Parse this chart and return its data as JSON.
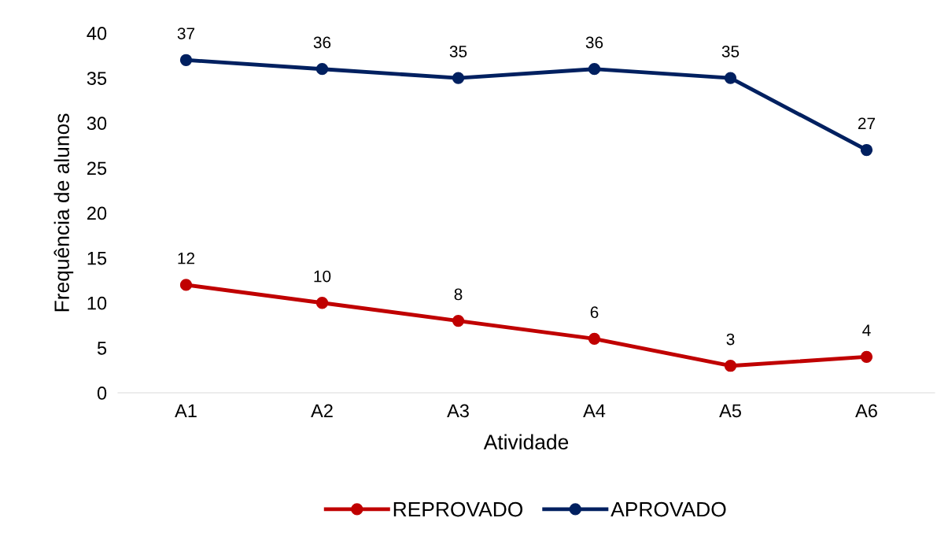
{
  "chart_data": {
    "type": "line",
    "xlabel": "Atividade",
    "ylabel": "Frequência de alunos",
    "categories": [
      "A1",
      "A2",
      "A3",
      "A4",
      "A5",
      "A6"
    ],
    "series": [
      {
        "name": "REPROVADO",
        "color": "#c00000",
        "values": [
          12,
          10,
          8,
          6,
          3,
          4
        ]
      },
      {
        "name": "APROVADO",
        "color": "#002060",
        "values": [
          37,
          36,
          35,
          36,
          35,
          27
        ]
      }
    ],
    "ylim": [
      0,
      40
    ],
    "yticks": [
      0,
      5,
      10,
      15,
      20,
      25,
      30,
      35,
      40
    ],
    "grid": false,
    "legend": "bottom",
    "marker": "circle",
    "line_style": "solid",
    "data_labels": true
  }
}
